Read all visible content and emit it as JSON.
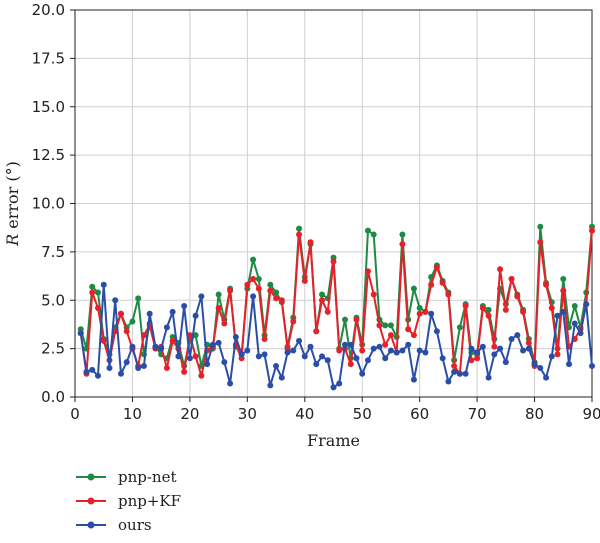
{
  "chart_data": {
    "type": "line",
    "xlabel": "Frame",
    "ylabel_italic": "R",
    "ylabel_rest": " error (°)",
    "xlim": [
      0,
      90
    ],
    "ylim": [
      0,
      20
    ],
    "x_ticks": [
      0,
      10,
      20,
      30,
      40,
      50,
      60,
      70,
      80,
      90
    ],
    "y_ticks": [
      0.0,
      2.5,
      5.0,
      7.5,
      10.0,
      12.5,
      15.0,
      17.5,
      20.0
    ],
    "y_tick_labels": [
      "0.0",
      "2.5",
      "5.0",
      "7.5",
      "10.0",
      "12.5",
      "15.0",
      "17.5",
      "20.0"
    ],
    "grid": true,
    "legend_placement": "bottom-left, below plot",
    "x": [
      1,
      2,
      3,
      4,
      5,
      6,
      7,
      8,
      9,
      10,
      11,
      12,
      13,
      14,
      15,
      16,
      17,
      18,
      19,
      20,
      21,
      22,
      23,
      24,
      25,
      26,
      27,
      28,
      29,
      30,
      31,
      32,
      33,
      34,
      35,
      36,
      37,
      38,
      39,
      40,
      41,
      42,
      43,
      44,
      45,
      46,
      47,
      48,
      49,
      50,
      51,
      52,
      53,
      54,
      55,
      56,
      57,
      58,
      59,
      60,
      61,
      62,
      63,
      64,
      65,
      66,
      67,
      68,
      69,
      70,
      71,
      72,
      73,
      74,
      75,
      76,
      77,
      78,
      79,
      80,
      81,
      82,
      83,
      84,
      85,
      86,
      87,
      88,
      89,
      90
    ],
    "series": [
      {
        "name": "pnp-net",
        "color": "#1e8a44",
        "values": [
          3.5,
          2.5,
          5.7,
          5.4,
          3.0,
          2.2,
          3.6,
          4.3,
          3.6,
          3.9,
          5.1,
          2.2,
          3.8,
          2.6,
          2.2,
          2.0,
          3.1,
          2.8,
          1.6,
          2.9,
          3.2,
          1.6,
          2.7,
          2.5,
          5.3,
          4.0,
          5.6,
          2.6,
          2.2,
          5.6,
          7.1,
          6.1,
          3.2,
          5.8,
          5.4,
          4.9,
          2.6,
          4.1,
          8.7,
          6.2,
          7.9,
          3.4,
          5.3,
          5.1,
          7.2,
          2.5,
          4.0,
          2.0,
          4.1,
          2.7,
          8.6,
          8.4,
          4.0,
          3.7,
          3.7,
          3.1,
          8.4,
          4.0,
          5.6,
          4.6,
          4.4,
          6.2,
          6.8,
          6.0,
          5.4,
          1.9,
          3.6,
          4.8,
          2.3,
          2.2,
          4.7,
          4.5,
          3.0,
          5.6,
          4.8,
          6.1,
          5.3,
          4.5,
          3.0,
          1.8,
          8.8,
          5.9,
          4.9,
          2.5,
          6.1,
          3.6,
          4.7,
          3.6,
          5.4,
          8.8
        ]
      },
      {
        "name": "pnp+KF",
        "color": "#e8202a",
        "values": [
          3.3,
          1.2,
          5.4,
          4.6,
          2.9,
          1.9,
          3.4,
          4.3,
          3.4,
          2.5,
          1.6,
          3.2,
          3.7,
          2.5,
          2.6,
          1.5,
          2.9,
          2.5,
          1.3,
          3.2,
          2.1,
          1.1,
          2.4,
          2.6,
          4.6,
          3.8,
          5.5,
          2.7,
          2.0,
          5.8,
          6.1,
          5.6,
          3.0,
          5.5,
          5.1,
          5.0,
          2.5,
          3.9,
          8.4,
          6.0,
          8.0,
          3.4,
          5.0,
          4.4,
          7.0,
          2.4,
          2.5,
          1.7,
          4.0,
          2.4,
          6.5,
          5.3,
          3.7,
          2.7,
          3.2,
          2.3,
          7.9,
          3.5,
          3.2,
          4.3,
          4.4,
          5.8,
          6.7,
          5.9,
          5.3,
          1.6,
          1.2,
          4.7,
          1.9,
          2.0,
          4.6,
          4.2,
          2.6,
          6.6,
          4.5,
          6.1,
          5.2,
          4.4,
          2.8,
          1.6,
          8.0,
          5.8,
          4.6,
          2.2,
          5.5,
          2.6,
          3.0,
          3.5,
          4.8,
          8.6
        ]
      },
      {
        "name": "ours",
        "color": "#2a4ea8",
        "values": [
          3.3,
          1.3,
          1.4,
          1.1,
          5.8,
          1.5,
          5.0,
          1.2,
          1.8,
          2.6,
          1.5,
          1.6,
          4.3,
          2.6,
          2.5,
          3.6,
          4.4,
          2.1,
          4.7,
          2.0,
          4.2,
          5.2,
          1.7,
          2.7,
          2.8,
          1.8,
          0.7,
          3.1,
          2.2,
          2.4,
          5.2,
          2.1,
          2.2,
          0.6,
          1.6,
          1.0,
          2.3,
          2.4,
          2.9,
          2.1,
          2.6,
          1.7,
          2.1,
          1.9,
          0.5,
          0.7,
          2.7,
          2.7,
          2.0,
          1.2,
          1.9,
          2.5,
          2.6,
          2.0,
          2.4,
          2.3,
          2.4,
          2.7,
          0.9,
          2.4,
          2.3,
          4.3,
          3.4,
          2.0,
          0.8,
          1.3,
          1.2,
          1.2,
          2.5,
          2.3,
          2.6,
          1.0,
          2.2,
          2.5,
          1.8,
          3.0,
          3.2,
          2.4,
          2.5,
          1.7,
          1.5,
          1.0,
          2.1,
          4.2,
          4.4,
          1.7,
          3.8,
          3.3,
          4.8,
          1.6
        ]
      }
    ]
  }
}
